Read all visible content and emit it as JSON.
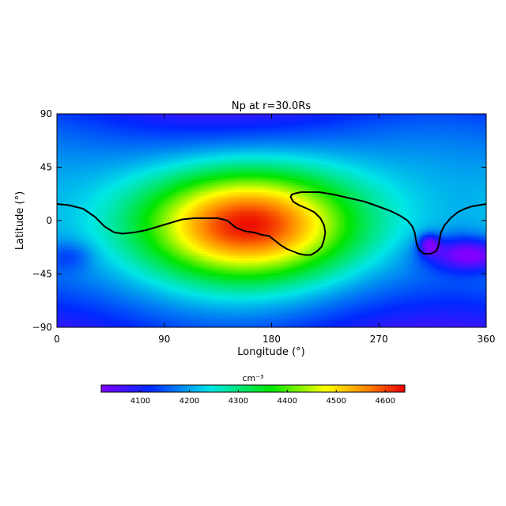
{
  "chart_data": [
    {
      "type": "heatmap",
      "title": "Np at r=30.0Rs",
      "xlabel": "Longitude (°)",
      "ylabel": "Latitude (°)",
      "xlim": [
        0,
        360
      ],
      "ylim": [
        -90,
        90
      ],
      "x_ticks": [
        0,
        90,
        180,
        270,
        360
      ],
      "y_ticks": [
        -90,
        -45,
        0,
        45,
        90
      ],
      "x_tick_labels": [
        "0",
        "90",
        "180",
        "270",
        "360"
      ],
      "y_tick_labels": [
        "−90",
        "−45",
        "0",
        "45",
        "90"
      ],
      "colorscale": "rainbow",
      "value_range": [
        4020,
        4640
      ],
      "features": [
        {
          "kind": "maximum",
          "lon": 165,
          "lat": 2,
          "value": 4630
        },
        {
          "kind": "minimum",
          "lon": 312,
          "lat": -20,
          "value": 4100
        },
        {
          "kind": "minimum",
          "lon": 337,
          "lat": -28,
          "value": 4040
        },
        {
          "kind": "minimum",
          "lon": 15,
          "lat": -30,
          "value": 4210
        }
      ],
      "contour": {
        "name": "neutral line",
        "lon": [
          0,
          10,
          22,
          32,
          40,
          48,
          55,
          65,
          75,
          85,
          95,
          105,
          115,
          125,
          135,
          143,
          150,
          158,
          165,
          172,
          178,
          183,
          188,
          193,
          198,
          203,
          208,
          213,
          218,
          222,
          224,
          225,
          224,
          221,
          216,
          210,
          203,
          198,
          196,
          197,
          200,
          205,
          212,
          220,
          232,
          245,
          258,
          272,
          280,
          288,
          294,
          298,
          300,
          301,
          302,
          304,
          308,
          313,
          318,
          320,
          321,
          322,
          325,
          330,
          336,
          342,
          348,
          354,
          360
        ],
        "lat": [
          14,
          13,
          10,
          3,
          -5,
          -10,
          -11,
          -10,
          -8,
          -5,
          -2,
          1,
          2,
          2,
          2,
          0,
          -6,
          -9,
          -10,
          -12,
          -13,
          -17,
          -21,
          -24,
          -26,
          -28,
          -29,
          -29,
          -26,
          -22,
          -16,
          -10,
          -4,
          2,
          7,
          10,
          13,
          16,
          20,
          22,
          23,
          24,
          24,
          24,
          22,
          19,
          16,
          11,
          8,
          4,
          0,
          -5,
          -10,
          -16,
          -21,
          -25,
          -28,
          -28,
          -26,
          -21,
          -15,
          -10,
          -4,
          2,
          7,
          10,
          12,
          13,
          14
        ]
      }
    },
    {
      "type": "colorbar",
      "unit": "cm⁻³",
      "range": [
        4020,
        4640
      ],
      "ticks": [
        4100,
        4200,
        4300,
        4400,
        4500,
        4600
      ],
      "tick_labels": [
        "4100",
        "4200",
        "4300",
        "4400",
        "4500",
        "4600"
      ]
    }
  ]
}
